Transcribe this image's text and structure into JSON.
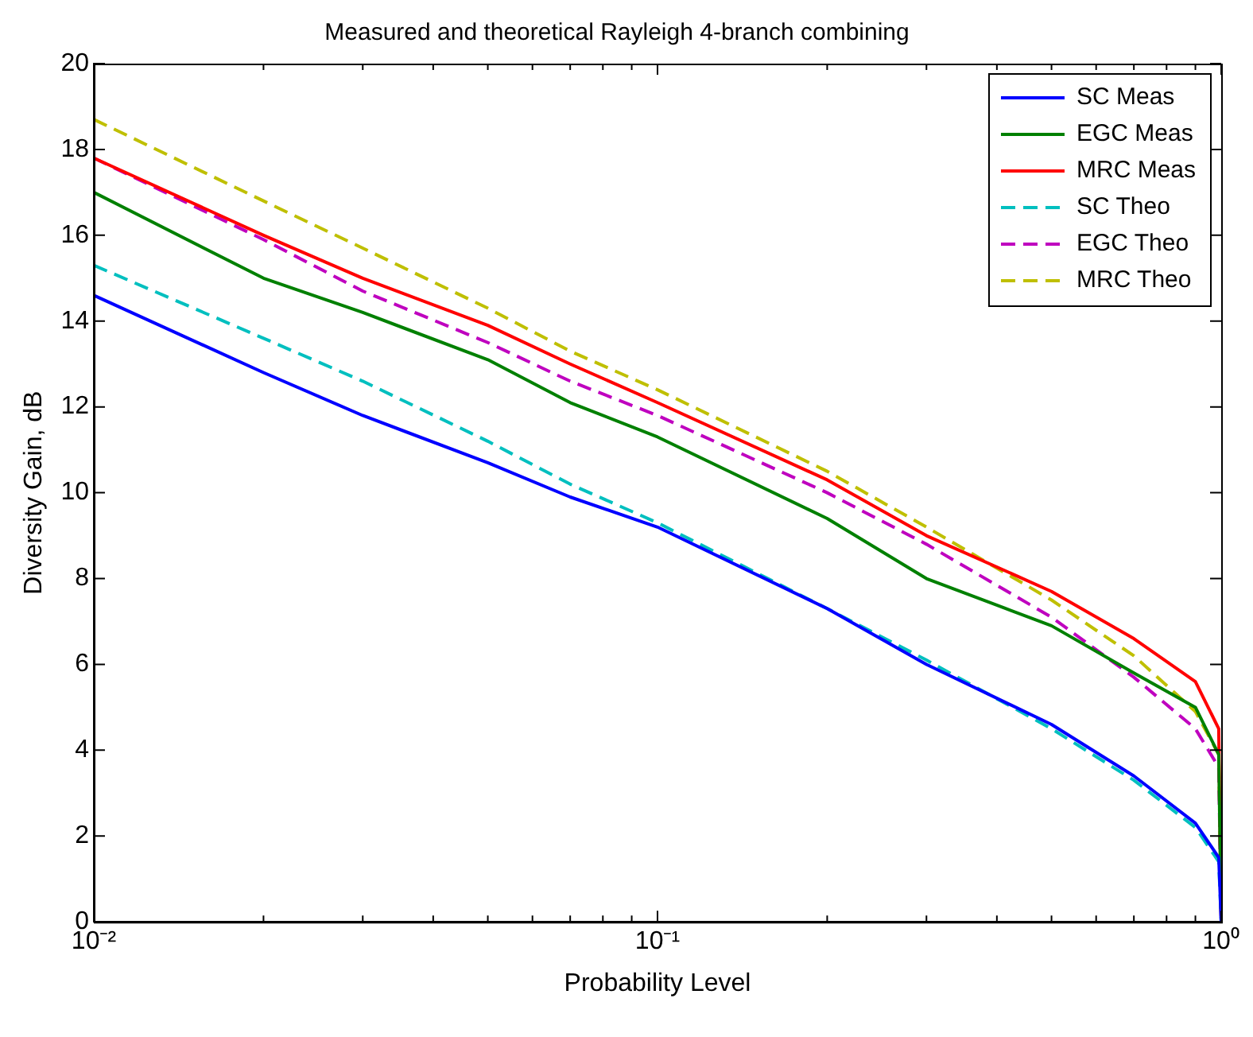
{
  "chart_data": {
    "type": "line",
    "title": "Measured and theoretical Rayleigh 4-branch combining",
    "xlabel": "Probability Level",
    "ylabel": "Diversity Gain, dB",
    "x": [
      0.01,
      0.02,
      0.03,
      0.05,
      0.07,
      0.1,
      0.2,
      0.3,
      0.5,
      0.7,
      0.9,
      0.99,
      1
    ],
    "series": [
      {
        "name": "SC Meas",
        "color": "#0000ff",
        "line_style": "solid",
        "values": [
          14.6,
          12.8,
          11.8,
          10.7,
          9.9,
          9.2,
          7.3,
          6.0,
          4.6,
          3.4,
          2.3,
          1.5,
          0
        ]
      },
      {
        "name": "EGC Meas",
        "color": "#008000",
        "line_style": "solid",
        "values": [
          17.0,
          15.0,
          14.2,
          13.1,
          12.1,
          11.3,
          9.4,
          8.0,
          6.9,
          5.8,
          5.0,
          3.9,
          0
        ]
      },
      {
        "name": "MRC Meas",
        "color": "#ff0000",
        "line_style": "solid",
        "values": [
          17.8,
          16.0,
          15.0,
          13.9,
          13.0,
          12.1,
          10.3,
          9.0,
          7.7,
          6.6,
          5.6,
          4.5,
          0
        ]
      },
      {
        "name": "SC Theo",
        "color": "#00bfbf",
        "line_style": "dashed",
        "values": [
          15.3,
          13.6,
          12.6,
          11.2,
          10.2,
          9.3,
          7.3,
          6.1,
          4.5,
          3.3,
          2.2,
          1.4,
          0
        ]
      },
      {
        "name": "EGC Theo",
        "color": "#bf00bf",
        "line_style": "dashed",
        "values": [
          17.8,
          15.9,
          14.7,
          13.5,
          12.6,
          11.8,
          10.0,
          8.8,
          7.1,
          5.7,
          4.5,
          3.6,
          0
        ]
      },
      {
        "name": "MRC Theo",
        "color": "#bfbf00",
        "line_style": "dashed",
        "values": [
          18.7,
          16.8,
          15.7,
          14.3,
          13.3,
          12.4,
          10.5,
          9.2,
          7.5,
          6.2,
          4.9,
          3.9,
          0
        ]
      }
    ],
    "log": "x",
    "xlim": [
      0.01,
      1
    ],
    "ylim": [
      0,
      20
    ],
    "xticks": [
      {
        "value": 0.01,
        "label": "10⁻²"
      },
      {
        "value": 0.02,
        "label": null
      },
      {
        "value": 0.03,
        "label": null
      },
      {
        "value": 0.04,
        "label": null
      },
      {
        "value": 0.05,
        "label": null
      },
      {
        "value": 0.06,
        "label": null
      },
      {
        "value": 0.07,
        "label": null
      },
      {
        "value": 0.08,
        "label": null
      },
      {
        "value": 0.09,
        "label": null
      },
      {
        "value": 0.1,
        "label": "10⁻¹"
      },
      {
        "value": 0.2,
        "label": null
      },
      {
        "value": 0.3,
        "label": null
      },
      {
        "value": 0.4,
        "label": null
      },
      {
        "value": 0.5,
        "label": null
      },
      {
        "value": 0.6,
        "label": null
      },
      {
        "value": 0.7,
        "label": null
      },
      {
        "value": 0.8,
        "label": null
      },
      {
        "value": 0.9,
        "label": null
      },
      {
        "value": 1,
        "label": "10⁰"
      }
    ],
    "yticks": [
      0,
      2,
      4,
      6,
      8,
      10,
      12,
      14,
      16,
      18,
      20
    ],
    "grid": false,
    "legend": "top right",
    "marker": "none"
  }
}
